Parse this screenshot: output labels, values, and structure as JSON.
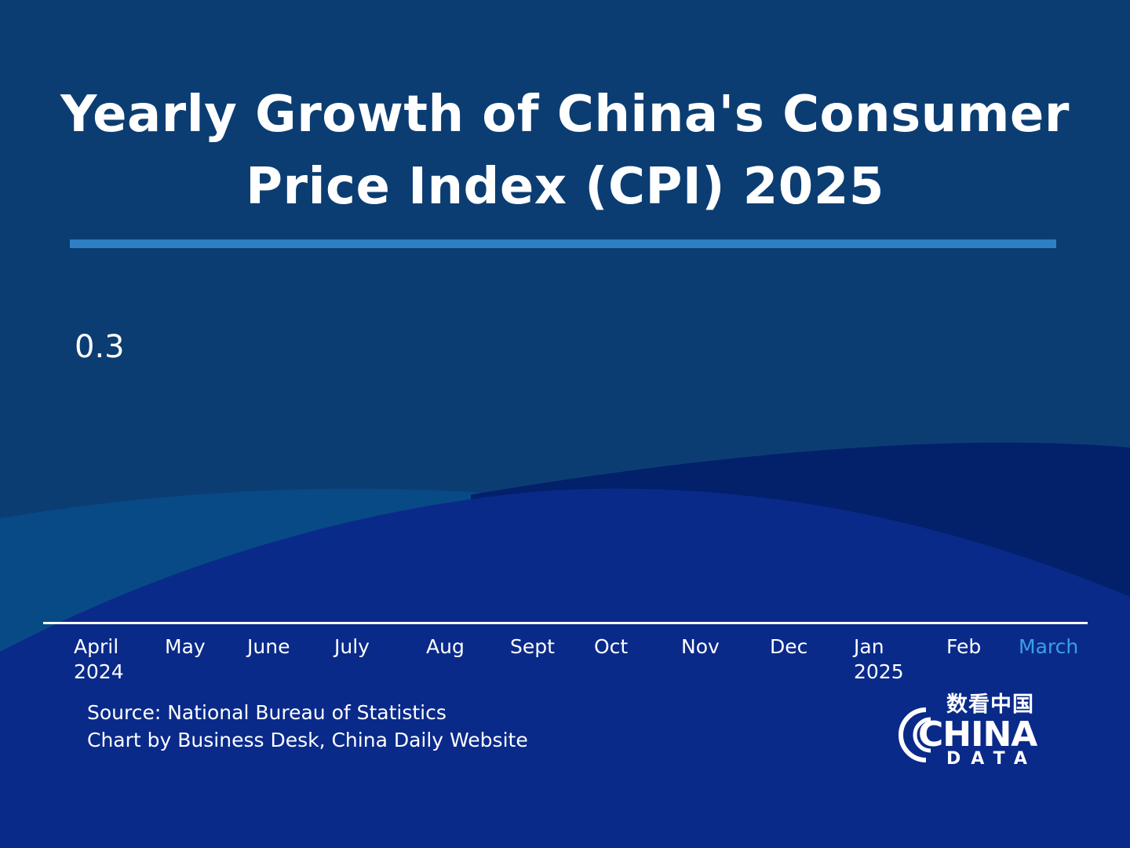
{
  "title": "Yearly Growth of China's Consumer Price Index (CPI) 2025",
  "source": {
    "line1": "Source: National Bureau of Statistics",
    "line2": "Chart by Business Desk, China Daily Website"
  },
  "logo": {
    "chinese": "数看中国",
    "word": "CHINA",
    "sub": "DATA"
  },
  "colors": {
    "background": "#0b3d72",
    "wave_dark": "#03206b",
    "wave_mid": "#0a2a8a",
    "accent": "#2f7fc4",
    "active_tick": "#3aa0e8"
  },
  "chart_data": {
    "type": "bar",
    "title": "Yearly Growth of China's Consumer Price Index (CPI) 2025",
    "categories": [
      "April 2024",
      "May",
      "June",
      "July",
      "Aug",
      "Sept",
      "Oct",
      "Nov",
      "Dec",
      "Jan 2025",
      "Feb",
      "March"
    ],
    "tick_labels": [
      {
        "main": "April",
        "year": "2024"
      },
      {
        "main": "May",
        "year": ""
      },
      {
        "main": "June",
        "year": ""
      },
      {
        "main": "July",
        "year": ""
      },
      {
        "main": "Aug",
        "year": ""
      },
      {
        "main": "Sept",
        "year": ""
      },
      {
        "main": "Oct",
        "year": ""
      },
      {
        "main": "Nov",
        "year": ""
      },
      {
        "main": "Dec",
        "year": ""
      },
      {
        "main": "Jan",
        "year": "2025"
      },
      {
        "main": "Feb",
        "year": ""
      },
      {
        "main": "March",
        "year": ""
      }
    ],
    "active_index": 11,
    "shown_value": "0.3",
    "grid": false
  }
}
